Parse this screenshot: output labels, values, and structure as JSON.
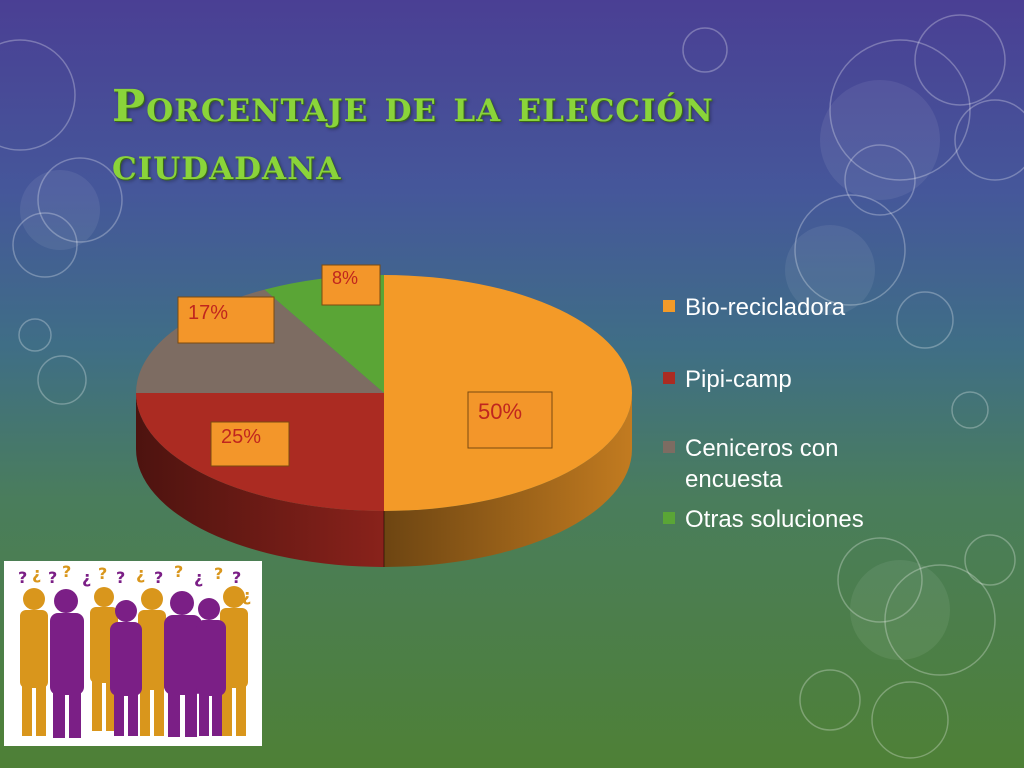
{
  "slide": {
    "title_lines": [
      "Porcentaje de la elección",
      "ciudadana"
    ]
  },
  "chart_data": {
    "type": "pie",
    "title": "Porcentaje de la elección ciudadana",
    "legend_position": "right",
    "slices": [
      {
        "label": "Bio-recicladora",
        "value": 50,
        "display": "50%",
        "color": "#f39a28"
      },
      {
        "label": "Pipi-camp",
        "value": 25,
        "display": "25%",
        "color": "#ab2b22"
      },
      {
        "label": "Ceniceros con encuesta",
        "value": 17,
        "display": "17%",
        "color": "#7d6c62"
      },
      {
        "label": "Otras soluciones",
        "value": 8,
        "display": "8%",
        "color": "#5aa536"
      }
    ],
    "label_box_color": "#f3962a",
    "label_text_color": "#c0261e"
  },
  "illustration": {
    "icon": "people-silhouettes-with-question-marks-icon",
    "colors": [
      "#d9961c",
      "#7b1f86"
    ]
  }
}
